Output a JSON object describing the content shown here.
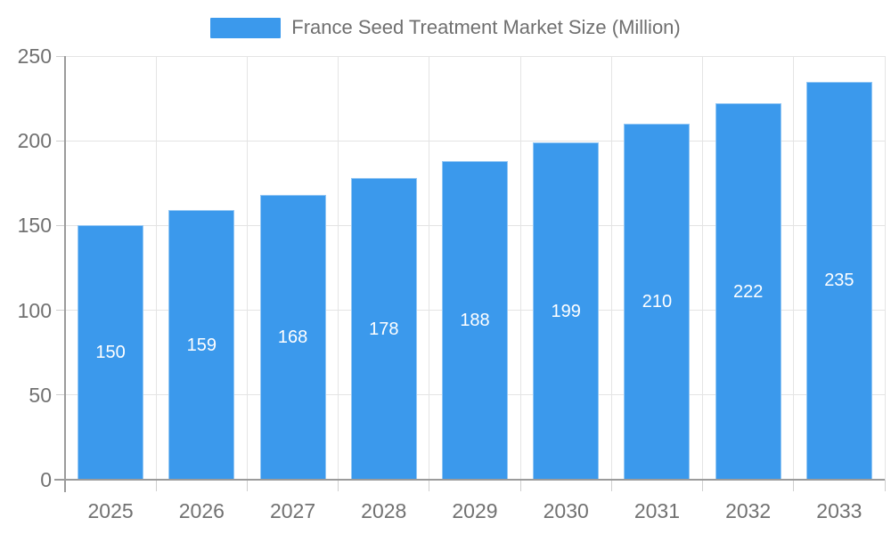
{
  "legend": {
    "label": "France Seed Treatment Market Size (Million)"
  },
  "chart_data": {
    "type": "bar",
    "title": "France Seed Treatment Market Size (Million)",
    "categories": [
      "2025",
      "2026",
      "2027",
      "2028",
      "2029",
      "2030",
      "2031",
      "2032",
      "2033"
    ],
    "values": [
      150,
      159,
      168,
      178,
      188,
      199,
      210,
      222,
      235
    ],
    "xlabel": "",
    "ylabel": "",
    "ylim": [
      0,
      250
    ],
    "yticks": [
      0,
      50,
      100,
      150,
      200,
      250
    ],
    "grid": true,
    "legend_position": "top",
    "bar_label_position": "inside-center",
    "bar_color": "#3B99EC",
    "bar_label_color": "#FFFFFF",
    "axis_text_color": "#717171",
    "axis_line_color": "#9B9B9B",
    "tick_color": "#CFCFCF",
    "grid_color": "#E4E4E4",
    "background_color": "#FFFFFF"
  }
}
